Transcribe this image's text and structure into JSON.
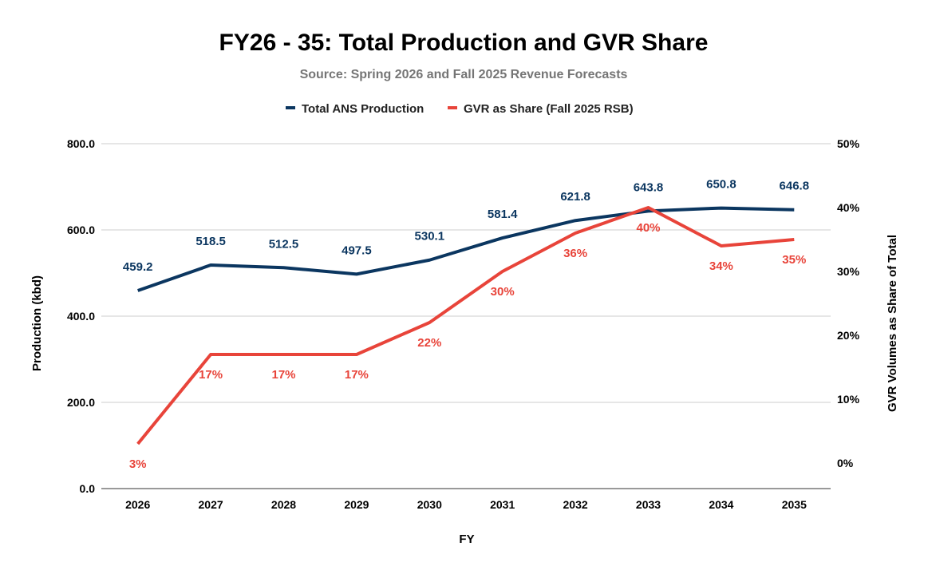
{
  "chart_data": {
    "type": "line",
    "title": "FY26 - 35: Total Production and GVR Share",
    "subtitle": "Source: Spring 2026 and Fall 2025 Revenue Forecasts",
    "xlabel": "FY",
    "ylabel": "Production (kbd)",
    "y2label": "GVR Volumes as Share of Total",
    "categories": [
      "2026",
      "2027",
      "2028",
      "2029",
      "2030",
      "2031",
      "2032",
      "2033",
      "2034",
      "2035"
    ],
    "ylim": [
      0,
      800
    ],
    "yticks": [
      "0.0",
      "200.0",
      "400.0",
      "600.0",
      "800.0"
    ],
    "y2lim": [
      -4,
      50
    ],
    "y2ticks": [
      "0%",
      "10%",
      "20%",
      "30%",
      "40%",
      "50%"
    ],
    "grid": true,
    "legend_position": "top",
    "series": [
      {
        "name": "Total ANS Production",
        "axis": "left",
        "color": "#0b3660",
        "values": [
          459.2,
          518.5,
          512.5,
          497.5,
          530.1,
          581.4,
          621.8,
          643.8,
          650.8,
          646.8
        ],
        "labels": [
          "459.2",
          "518.5",
          "512.5",
          "497.5",
          "530.1",
          "581.4",
          "621.8",
          "643.8",
          "650.8",
          "646.8"
        ]
      },
      {
        "name": "GVR as Share (Fall 2025 RSB)",
        "axis": "right",
        "color": "#e8443a",
        "values": [
          3,
          17,
          17,
          17,
          22,
          30,
          36,
          40,
          34,
          35
        ],
        "labels": [
          "3%",
          "17%",
          "17%",
          "17%",
          "22%",
          "30%",
          "36%",
          "40%",
          "34%",
          "35%"
        ]
      }
    ]
  }
}
